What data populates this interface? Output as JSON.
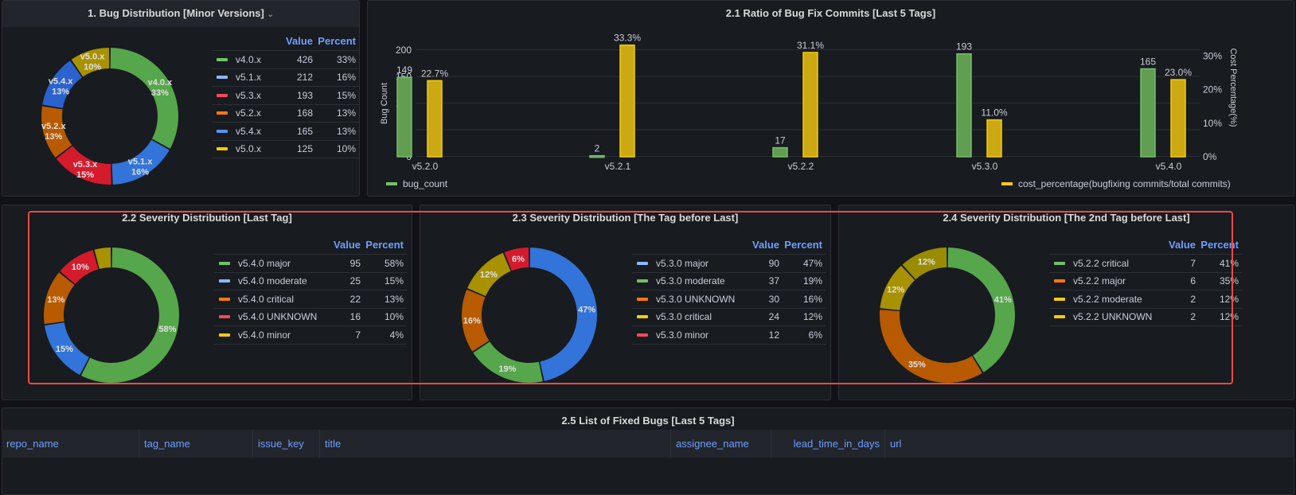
{
  "colors": {
    "green": "#56a64b",
    "blue": "#3274d9",
    "lightblue": "#5794f2",
    "red": "#e02f44",
    "orange": "#c15c00",
    "yellow": "#b8a000",
    "legend_green": "#73bf69",
    "legend_lightblue": "#8ab8ff",
    "legend_red": "#f2495c",
    "legend_orange": "#ff780a",
    "legend_blue": "#5794f2",
    "legend_yellow": "#f2cc0c",
    "header_blue": "#6e9fff",
    "highlight": "#f04848"
  },
  "panel1": {
    "title": "1. Bug Distribution [Minor Versions]",
    "icon": "chevron-down-icon",
    "value_header": "Value",
    "percent_header": "Percent",
    "items": [
      {
        "name": "v4.0.x",
        "value": 426,
        "percent": "33%",
        "color": "#56a64b",
        "legend": "#73bf69"
      },
      {
        "name": "v5.1.x",
        "value": 212,
        "percent": "16%",
        "color": "#3274d9",
        "legend": "#8ab8ff"
      },
      {
        "name": "v5.3.x",
        "value": 193,
        "percent": "15%",
        "color": "#d41b2c",
        "legend": "#f2495c"
      },
      {
        "name": "v5.2.x",
        "value": 168,
        "percent": "13%",
        "color": "#b85a00",
        "legend": "#ff780a"
      },
      {
        "name": "v5.4.x",
        "value": 165,
        "percent": "13%",
        "color": "#2a62cf",
        "legend": "#5794f2"
      },
      {
        "name": "v5.0.x",
        "value": 125,
        "percent": "10%",
        "color": "#a89200",
        "legend": "#f2cc0c"
      }
    ]
  },
  "panel21": {
    "title": "2.1 Ratio of Bug Fix Commits [Last 5 Tags]",
    "left_axis_label": "Bug Count",
    "right_axis_label": "Cost Percentage(%)"
  },
  "chart_data": {
    "type": "bar",
    "categories": [
      "v5.2.0",
      "v5.2.1",
      "v5.2.2",
      "v5.3.0",
      "v5.4.0"
    ],
    "series": [
      {
        "name": "bug_count",
        "axis": "left",
        "color": "#73bf69",
        "values": [
          149,
          2,
          17,
          193,
          165
        ],
        "labels": [
          "149",
          "2",
          "17",
          "193",
          "165"
        ]
      },
      {
        "name": "cost_percentage(bugfixing commits/total commits)",
        "axis": "right",
        "color": "#f2cc0c",
        "values": [
          22.7,
          33.3,
          31.1,
          11.0,
          23.0
        ],
        "labels": [
          "22.7%",
          "33.3%",
          "31.1%",
          "11.0%",
          "23.0%"
        ]
      }
    ],
    "left_ticks": [
      "0",
      "50",
      "100",
      "150",
      "200"
    ],
    "right_ticks": [
      "0%",
      "10%",
      "20%",
      "30%"
    ],
    "ylim_left": [
      0,
      200
    ],
    "legend": "bottom",
    "grid": true
  },
  "panel22": {
    "title": "2.2 Severity Distribution [Last Tag]",
    "value_header": "Value",
    "percent_header": "Percent",
    "items": [
      {
        "name": "v5.4.0 major",
        "value": 95,
        "percent": "58%",
        "color": "#56a64b",
        "legend": "#73bf69"
      },
      {
        "name": "v5.4.0 moderate",
        "value": 25,
        "percent": "15%",
        "color": "#3274d9",
        "legend": "#8ab8ff"
      },
      {
        "name": "v5.4.0 critical",
        "value": 22,
        "percent": "13%",
        "color": "#b85a00",
        "legend": "#ff780a"
      },
      {
        "name": "v5.4.0 UNKNOWN",
        "value": 16,
        "percent": "10%",
        "color": "#d41b2c",
        "legend": "#f2495c"
      },
      {
        "name": "v5.4.0 minor",
        "value": 7,
        "percent": "4%",
        "color": "#a89200",
        "legend": "#f2cc0c"
      }
    ]
  },
  "panel23": {
    "title": "2.3 Severity Distribution [The Tag before Last]",
    "value_header": "Value",
    "percent_header": "Percent",
    "items": [
      {
        "name": "v5.3.0 major",
        "value": 90,
        "percent": "47%",
        "color": "#3274d9",
        "legend": "#8ab8ff"
      },
      {
        "name": "v5.3.0 moderate",
        "value": 37,
        "percent": "19%",
        "color": "#56a64b",
        "legend": "#73bf69"
      },
      {
        "name": "v5.3.0 UNKNOWN",
        "value": 30,
        "percent": "16%",
        "color": "#b85a00",
        "legend": "#ff780a"
      },
      {
        "name": "v5.3.0 critical",
        "value": 24,
        "percent": "12%",
        "color": "#a89200",
        "legend": "#f2cc0c"
      },
      {
        "name": "v5.3.0 minor",
        "value": 12,
        "percent": "6%",
        "color": "#d41b2c",
        "legend": "#f2495c"
      }
    ]
  },
  "panel24": {
    "title": "2.4 Severity Distribution [The 2nd Tag before Last]",
    "value_header": "Value",
    "percent_header": "Percent",
    "items": [
      {
        "name": "v5.2.2 critical",
        "value": 7,
        "percent": "41%",
        "color": "#56a64b",
        "legend": "#73bf69"
      },
      {
        "name": "v5.2.2 major",
        "value": 6,
        "percent": "35%",
        "color": "#b85a00",
        "legend": "#ff780a"
      },
      {
        "name": "v5.2.2 moderate",
        "value": 2,
        "percent": "12%",
        "color": "#a89200",
        "legend": "#f2cc0c"
      },
      {
        "name": "v5.2.2 UNKNOWN",
        "value": 2,
        "percent": "12%",
        "color": "#9a8c00",
        "legend": "#f2cc0c"
      }
    ]
  },
  "panel25": {
    "title": "2.5 List of Fixed Bugs [Last 5 Tags]",
    "columns": [
      "repo_name",
      "tag_name",
      "issue_key",
      "title",
      "assignee_name",
      "lead_time_in_days",
      "url"
    ]
  }
}
